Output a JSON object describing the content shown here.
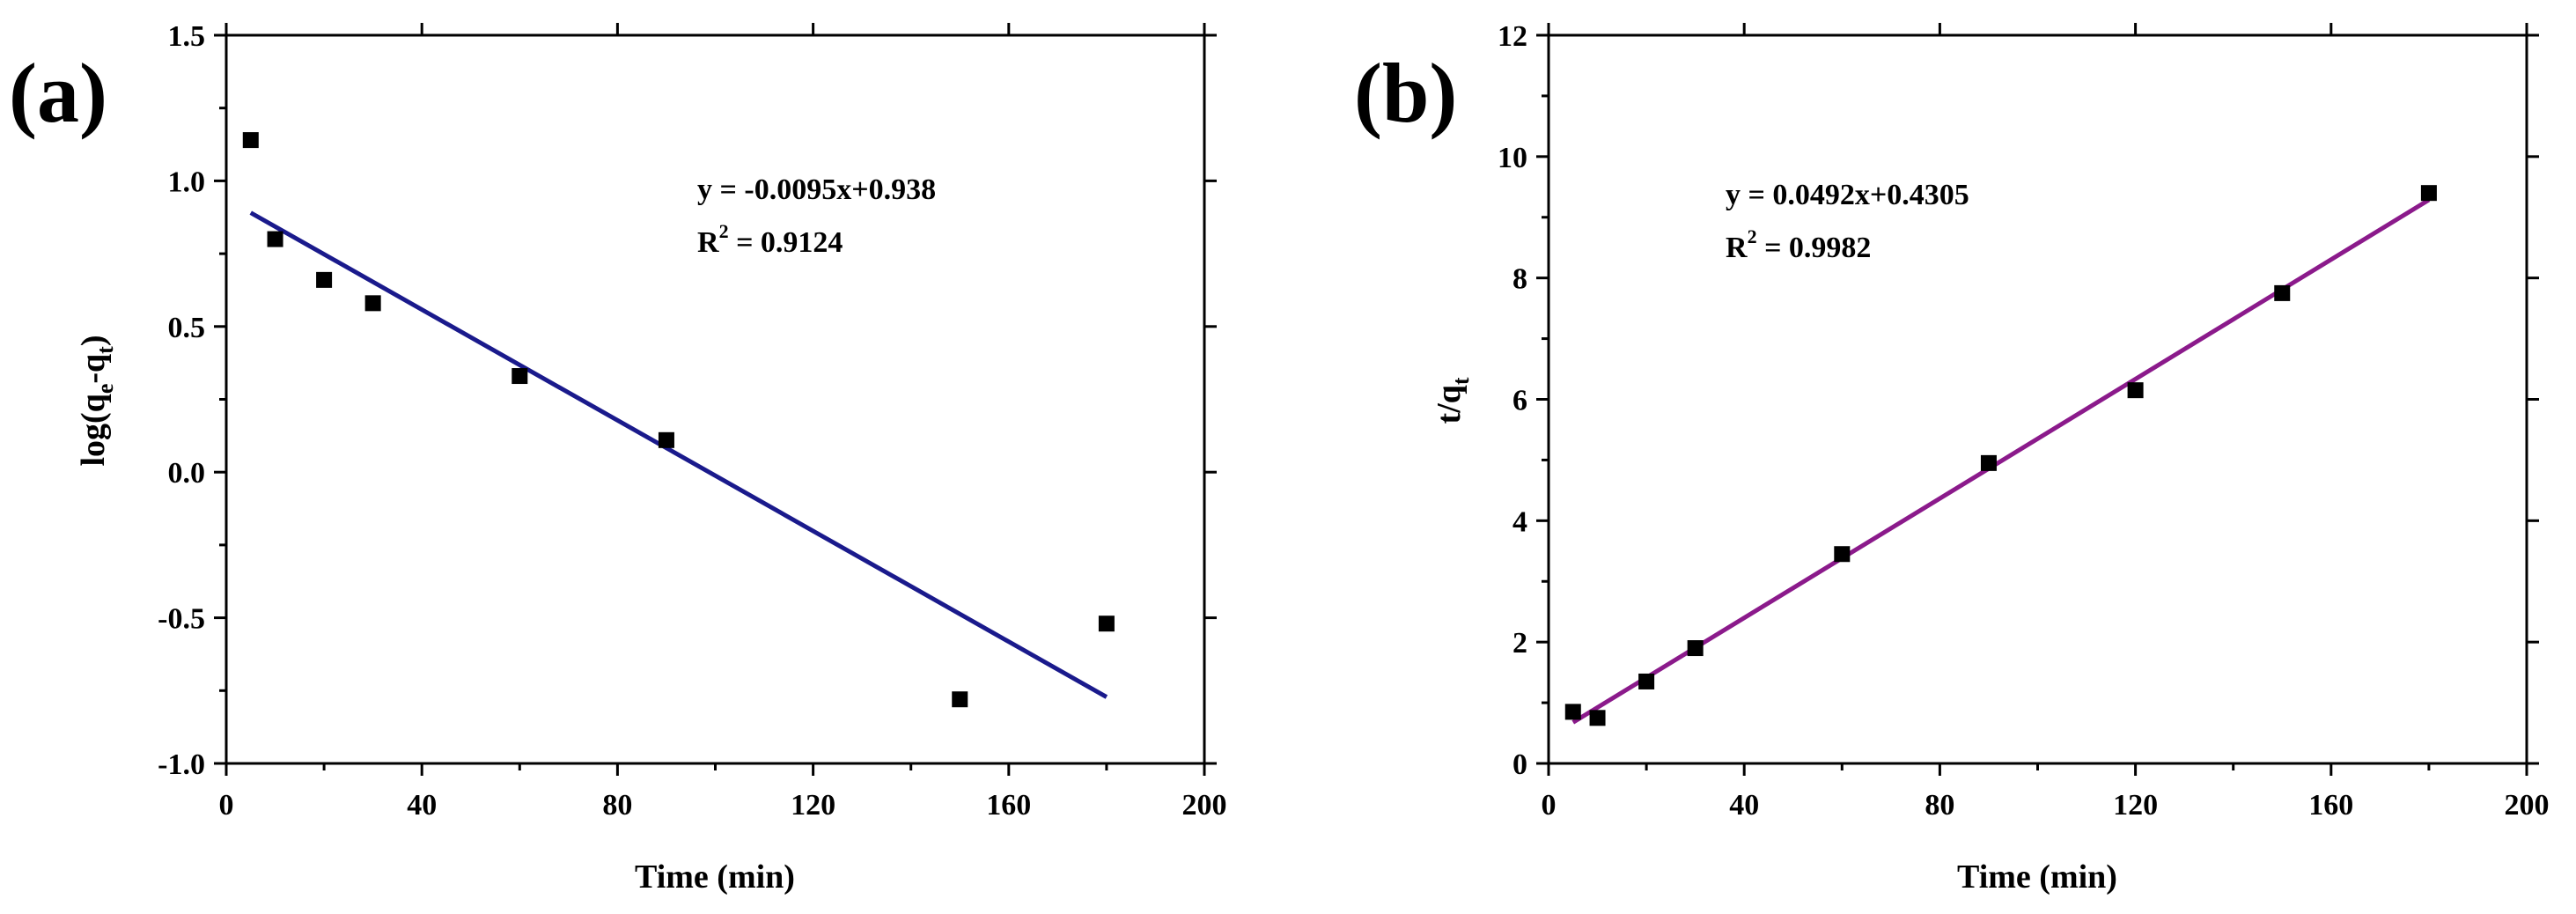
{
  "figure_labels": [
    "(a)",
    "(b)"
  ],
  "chart_data": [
    {
      "type": "scatter",
      "panel_label": "(a)",
      "xlabel": "Time (min)",
      "ylabel": {
        "base": "log(q",
        "sub1": "e",
        "mid": "-q",
        "sub2": "t",
        "end": ")"
      },
      "xlim": [
        0,
        200
      ],
      "ylim": [
        -1.0,
        1.5
      ],
      "xticks": [
        "0",
        "40",
        "80",
        "120",
        "160",
        "200"
      ],
      "yticks": [
        "-1.0",
        "-0.5",
        "0.0",
        "0.5",
        "1.0",
        "1.5"
      ],
      "series": [
        {
          "name": "data",
          "x": [
            5,
            10,
            20,
            30,
            60,
            90,
            150,
            180
          ],
          "y": [
            1.14,
            0.8,
            0.66,
            0.58,
            0.33,
            0.11,
            -0.78,
            -0.52
          ]
        }
      ],
      "fit": {
        "slope": -0.0095,
        "intercept": 0.938,
        "x_range": [
          5,
          180
        ],
        "color": "#1a1a8c"
      },
      "equation": "y = -0.0095x+0.938",
      "r2": {
        "prefix": "R",
        "sup": "2",
        "value": " = 0.9124"
      }
    },
    {
      "type": "scatter",
      "panel_label": "(b)",
      "xlabel": "Time (min)",
      "ylabel": {
        "base": "t/q",
        "sub1": "t"
      },
      "xlim": [
        0,
        200
      ],
      "ylim": [
        0,
        12
      ],
      "xticks": [
        "0",
        "40",
        "80",
        "120",
        "160",
        "200"
      ],
      "yticks": [
        "0",
        "2",
        "4",
        "6",
        "8",
        "10",
        "12"
      ],
      "series": [
        {
          "name": "data",
          "x": [
            5,
            10,
            20,
            30,
            60,
            90,
            120,
            150,
            180
          ],
          "y": [
            0.85,
            0.75,
            1.35,
            1.9,
            3.45,
            4.95,
            6.15,
            7.75,
            9.4
          ]
        }
      ],
      "fit": {
        "slope": 0.0492,
        "intercept": 0.4305,
        "x_range": [
          5,
          180
        ],
        "color": "#8b1a8b"
      },
      "equation": "y = 0.0492x+0.4305",
      "r2": {
        "prefix": "R",
        "sup": "2",
        "value": " = 0.9982"
      }
    }
  ]
}
